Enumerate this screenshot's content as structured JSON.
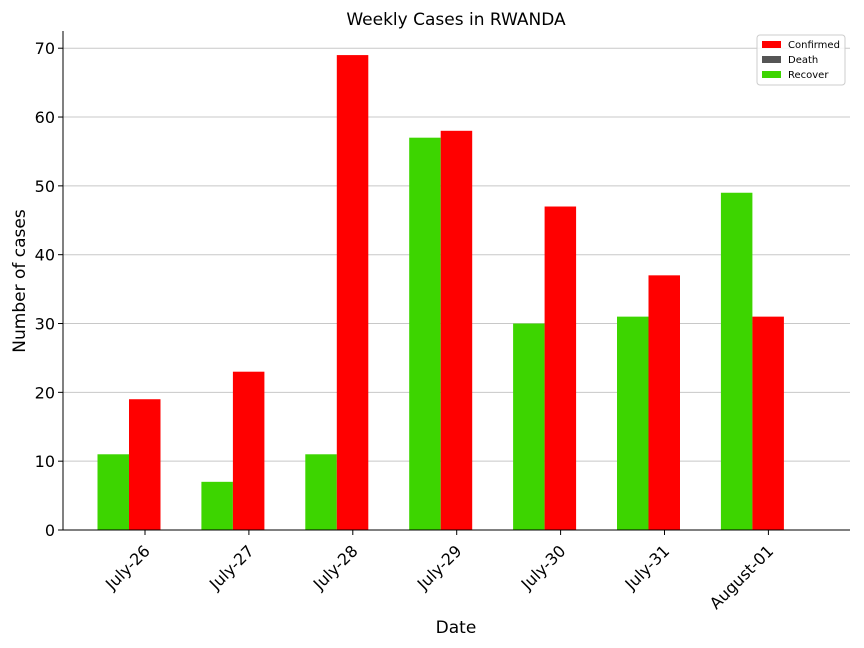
{
  "chart_data": {
    "type": "bar",
    "title": "Weekly Cases in RWANDA",
    "xlabel": "Date",
    "ylabel": "Number of cases",
    "categories": [
      "July-26",
      "July-27",
      "July-28",
      "July-29",
      "July-30",
      "July-31",
      "August-01"
    ],
    "series": [
      {
        "name": "Confirmed",
        "color": "#ff0000",
        "values": [
          19,
          23,
          69,
          58,
          47,
          37,
          31
        ]
      },
      {
        "name": "Death",
        "color": "#555555",
        "values": [
          0,
          0,
          0,
          0,
          0,
          0,
          0
        ]
      },
      {
        "name": "Recover",
        "color": "#3dd500",
        "values": [
          11,
          7,
          11,
          57,
          30,
          31,
          49
        ]
      }
    ],
    "ylim": [
      0,
      72.5
    ],
    "yticks": [
      0,
      10,
      20,
      30,
      40,
      50,
      60,
      70
    ],
    "grid": "horizontal",
    "legend_position": "top-right"
  }
}
